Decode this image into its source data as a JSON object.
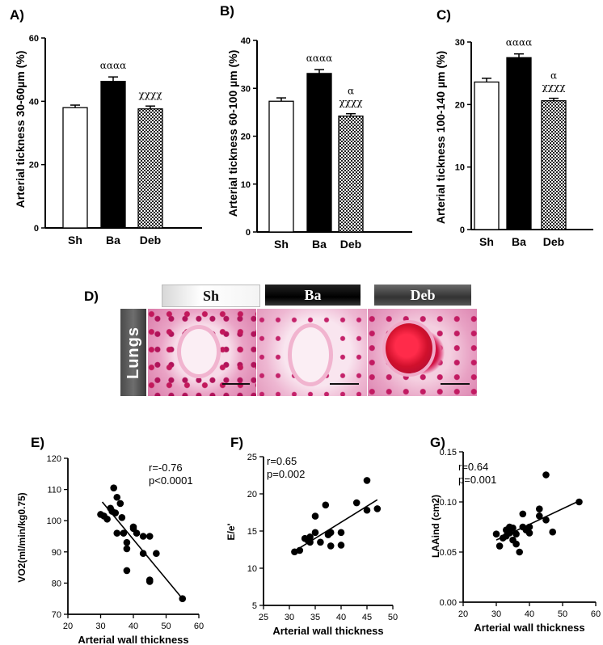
{
  "panel_labels": {
    "a": "A)",
    "b": "B)",
    "c": "C)",
    "d": "D)",
    "e": "E)",
    "f": "F)",
    "g": "G)"
  },
  "histology": {
    "tabs": [
      "Sh",
      "Ba",
      "Deb"
    ],
    "tissue_label": "Lungs"
  },
  "chart_data": [
    {
      "id": "A",
      "type": "bar",
      "categories": [
        "Sh",
        "Ba",
        "Deb"
      ],
      "values": [
        38,
        46.3,
        37.6
      ],
      "errors": [
        0.8,
        1.4,
        0.9
      ],
      "fills": [
        "white",
        "black",
        "checker"
      ],
      "ylabel": "Arterial tickness 30-60µm (%)",
      "ylim": [
        0,
        60
      ],
      "yticks": [
        0,
        20,
        40,
        60
      ],
      "annotations": [
        "",
        "αααα",
        "χχχχ"
      ]
    },
    {
      "id": "B",
      "type": "bar",
      "categories": [
        "Sh",
        "Ba",
        "Deb"
      ],
      "values": [
        27.3,
        33.1,
        24.2
      ],
      "errors": [
        0.7,
        0.8,
        0.5
      ],
      "fills": [
        "white",
        "black",
        "checker"
      ],
      "ylabel": "Arterial tickness 60-100 µm (%)",
      "ylim": [
        0,
        40
      ],
      "yticks": [
        0,
        10,
        20,
        30,
        40
      ],
      "annotations": [
        "",
        "αααα",
        "α\nχχχχ"
      ]
    },
    {
      "id": "C",
      "type": "bar",
      "categories": [
        "Sh",
        "Ba",
        "Deb"
      ],
      "values": [
        23.6,
        27.5,
        20.6
      ],
      "errors": [
        0.6,
        0.6,
        0.4
      ],
      "fills": [
        "white",
        "black",
        "checker"
      ],
      "ylabel": "Arterial tickness 100-140 µm (%)",
      "ylim": [
        0,
        30
      ],
      "yticks": [
        0,
        10,
        20,
        30
      ],
      "annotations": [
        "",
        "αααα",
        "α\nχχχχ"
      ]
    },
    {
      "id": "E",
      "type": "scatter",
      "xlabel": "Arterial wall thickness",
      "ylabel": "VO2(ml/min/kg0.75)",
      "xlim": [
        20,
        60
      ],
      "ylim": [
        70,
        120
      ],
      "xticks": [
        20,
        30,
        40,
        50,
        60
      ],
      "yticks": [
        70,
        80,
        90,
        100,
        110,
        120
      ],
      "stats": [
        "r=-0.76",
        "p<0.0001"
      ],
      "fit": {
        "x": [
          30.5,
          55
        ],
        "y": [
          106,
          75
        ]
      },
      "points": [
        [
          30,
          102
        ],
        [
          31,
          101.5
        ],
        [
          32,
          100.5
        ],
        [
          33,
          104
        ],
        [
          33.5,
          103
        ],
        [
          34,
          110.5
        ],
        [
          34.5,
          102.5
        ],
        [
          35,
          107.5
        ],
        [
          35,
          96
        ],
        [
          36,
          105.5
        ],
        [
          36.5,
          101
        ],
        [
          37,
          96
        ],
        [
          38,
          93
        ],
        [
          38,
          91
        ],
        [
          38,
          84
        ],
        [
          40,
          98
        ],
        [
          40,
          97.5
        ],
        [
          41,
          96
        ],
        [
          43,
          95
        ],
        [
          43,
          89.5
        ],
        [
          45,
          95
        ],
        [
          45,
          81
        ],
        [
          45,
          80.5
        ],
        [
          47,
          89.5
        ],
        [
          55,
          75
        ]
      ]
    },
    {
      "id": "F",
      "type": "scatter",
      "xlabel": "Arterial wall thickness",
      "ylabel": "E/e'",
      "xlim": [
        25,
        50
      ],
      "ylim": [
        5,
        25
      ],
      "xticks": [
        25,
        30,
        35,
        40,
        45,
        50
      ],
      "yticks": [
        5,
        10,
        15,
        20,
        25
      ],
      "stats": [
        "r=0.65",
        "p=0.002"
      ],
      "fit": {
        "x": [
          31,
          47
        ],
        "y": [
          12.3,
          19.2
        ]
      },
      "points": [
        [
          31,
          12.2
        ],
        [
          32,
          12.4
        ],
        [
          33,
          14
        ],
        [
          33.5,
          13.8
        ],
        [
          34,
          13.5
        ],
        [
          34,
          14.2
        ],
        [
          35,
          17
        ],
        [
          35,
          14.8
        ],
        [
          36,
          13.5
        ],
        [
          37,
          18.5
        ],
        [
          37.5,
          14.5
        ],
        [
          38,
          13
        ],
        [
          38,
          14.8
        ],
        [
          40,
          14.8
        ],
        [
          40,
          13.1
        ],
        [
          43,
          18.8
        ],
        [
          45,
          21.8
        ],
        [
          45,
          17.8
        ],
        [
          47,
          18
        ]
      ]
    },
    {
      "id": "G",
      "type": "scatter",
      "xlabel": "Arterial wall thickness",
      "ylabel": "LAAind (cm2)",
      "xlim": [
        20,
        60
      ],
      "ylim": [
        0,
        0.15
      ],
      "xticks": [
        20,
        30,
        40,
        50,
        60
      ],
      "yticks": [
        0.0,
        0.05,
        0.1,
        0.15
      ],
      "stats": [
        "r=0.64",
        "p=0.001"
      ],
      "fit": {
        "x": [
          30,
          55
        ],
        "y": [
          0.062,
          0.101
        ]
      },
      "points": [
        [
          30,
          0.068
        ],
        [
          31,
          0.056
        ],
        [
          32,
          0.064
        ],
        [
          33,
          0.066
        ],
        [
          33,
          0.072
        ],
        [
          34,
          0.075
        ],
        [
          34,
          0.069
        ],
        [
          35,
          0.074
        ],
        [
          35,
          0.062
        ],
        [
          36,
          0.058
        ],
        [
          36,
          0.068
        ],
        [
          37,
          0.05
        ],
        [
          38,
          0.075
        ],
        [
          38,
          0.088
        ],
        [
          39,
          0.072
        ],
        [
          40,
          0.075
        ],
        [
          40,
          0.069
        ],
        [
          43,
          0.086
        ],
        [
          43,
          0.093
        ],
        [
          45,
          0.127
        ],
        [
          45,
          0.082
        ],
        [
          47,
          0.07
        ],
        [
          55,
          0.1
        ]
      ]
    }
  ]
}
